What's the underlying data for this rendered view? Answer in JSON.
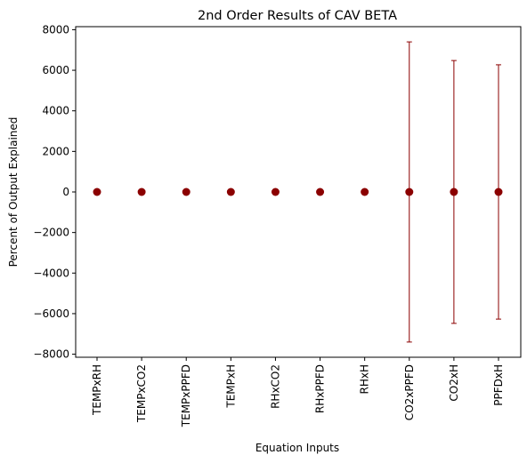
{
  "chart_data": {
    "type": "scatter",
    "title": "2nd Order Results of CAV BETA",
    "xlabel": "Equation Inputs",
    "ylabel": "Percent of Output Explained",
    "categories": [
      "TEMPxRH",
      "TEMPxCO2",
      "TEMPxPPFD",
      "TEMPxH",
      "RHxCO2",
      "RHxPPFD",
      "RHxH",
      "CO2xPPFD",
      "CO2xH",
      "PPFDxH"
    ],
    "series": [
      {
        "values": [
          0,
          0,
          0,
          0,
          0,
          0,
          0,
          0,
          0,
          0
        ],
        "error": [
          0,
          0,
          0,
          0,
          0,
          0,
          0,
          7400,
          6480,
          6270
        ]
      }
    ],
    "ylim": [
      -8150,
      8150
    ],
    "yticks": [
      -8000,
      -6000,
      -4000,
      -2000,
      0,
      2000,
      4000,
      6000,
      8000
    ],
    "colors": {
      "marker": "#8b0000",
      "errorbar": "#8b0000"
    },
    "grid": false,
    "legend": "none"
  }
}
